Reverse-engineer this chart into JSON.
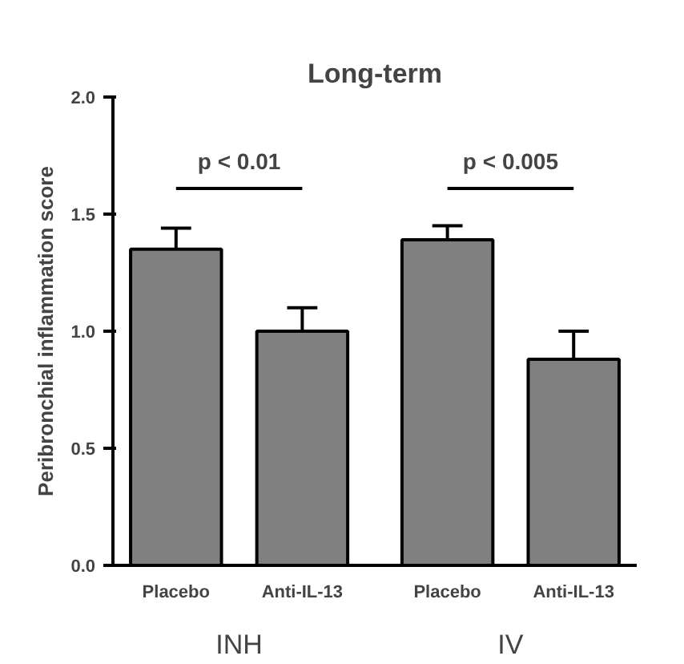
{
  "chart_data": {
    "type": "bar",
    "title": "Long-term",
    "ylabel": "Peribronchial inflammation score",
    "categories": [
      "Placebo",
      "Anti-IL-13",
      "Placebo",
      "Anti-IL-13"
    ],
    "values": [
      1.35,
      1.0,
      1.39,
      0.88
    ],
    "color": "#808080",
    "errors": [
      [
        1.35,
        1.44
      ],
      [
        1.0,
        1.1
      ],
      [
        1.39,
        1.45
      ],
      [
        0.88,
        1.0
      ]
    ],
    "ylim": [
      0,
      2.0
    ],
    "yticks": [
      {
        "value": 0,
        "label": "0.0"
      },
      0.5,
      {
        "value": 1,
        "label": "1.0"
      },
      1.5,
      {
        "value": 2,
        "label": "2.0"
      }
    ],
    "annotations": [
      "p < 0.01",
      "p < 0.005",
      "INH",
      "IV"
    ],
    "grid": false
  }
}
